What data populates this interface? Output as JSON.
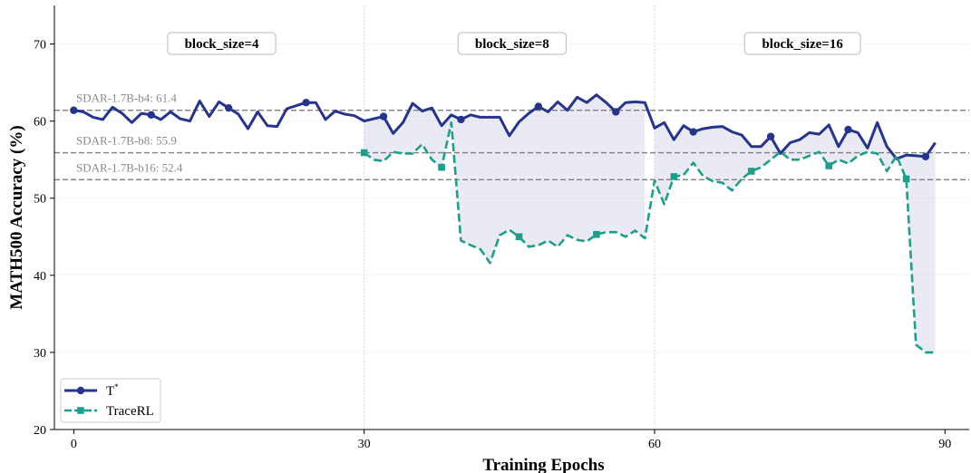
{
  "chart_data": {
    "type": "line",
    "title": "",
    "xlabel": "Training Epochs",
    "ylabel": "MATH500 Accuracy (%)",
    "xlim": [
      -2,
      92.5
    ],
    "ylim": [
      20,
      75
    ],
    "xticks": [
      0,
      30,
      60,
      90
    ],
    "yticks": [
      20,
      30,
      40,
      50,
      60,
      70
    ],
    "grid": "horizontal dotted",
    "legend_position": "bottom-left",
    "phase_boundaries": [
      30,
      60
    ],
    "phase_labels": [
      {
        "text": "block_size=4",
        "x": 15
      },
      {
        "text": "block_size=8",
        "x": 45
      },
      {
        "text": "block_size=16",
        "x": 75
      }
    ],
    "reference_lines": [
      {
        "label": "SDAR-1.7B-b4: 61.4",
        "value": 61.4
      },
      {
        "label": "SDAR-1.7B-b8: 55.9",
        "value": 55.9
      },
      {
        "label": "SDAR-1.7B-b16: 52.4",
        "value": 52.4
      }
    ],
    "series": [
      {
        "name": "T*",
        "color": "#27348b",
        "style": "solid",
        "marker": "circle",
        "marker_every": 8,
        "x": [
          0,
          1,
          2,
          3,
          4,
          5,
          6,
          7,
          8,
          9,
          10,
          11,
          12,
          13,
          14,
          15,
          16,
          17,
          18,
          19,
          20,
          21,
          22,
          23,
          24,
          25,
          26,
          27,
          28,
          29,
          30,
          31,
          32,
          33,
          34,
          35,
          36,
          37,
          38,
          39,
          40,
          41,
          42,
          43,
          44,
          45,
          46,
          47,
          48,
          49,
          50,
          51,
          52,
          53,
          54,
          55,
          56,
          57,
          58,
          59,
          60,
          61,
          62,
          63,
          64,
          65,
          66,
          67,
          68,
          69,
          70,
          71,
          72,
          73,
          74,
          75,
          76,
          77,
          78,
          79,
          80,
          81,
          82,
          83,
          84,
          85,
          86,
          87,
          88,
          89
        ],
        "values": [
          61.4,
          61.2,
          60.5,
          60.2,
          61.8,
          61.0,
          59.8,
          61.0,
          60.8,
          60.2,
          61.2,
          60.3,
          60.0,
          62.6,
          60.6,
          62.5,
          61.7,
          60.9,
          59.0,
          61.2,
          59.4,
          59.3,
          61.6,
          62.0,
          62.4,
          62.4,
          60.2,
          61.3,
          60.9,
          60.7,
          60.0,
          60.3,
          60.6,
          58.4,
          59.8,
          62.3,
          61.3,
          61.7,
          59.4,
          60.8,
          60.2,
          60.8,
          60.5,
          60.5,
          60.5,
          58.1,
          59.9,
          61.0,
          61.9,
          61.2,
          62.5,
          61.4,
          63.1,
          62.4,
          63.4,
          62.4,
          61.2,
          62.4,
          62.5,
          62.4,
          59.1,
          59.8,
          57.6,
          59.4,
          58.6,
          59.0,
          59.2,
          59.3,
          58.6,
          58.2,
          56.7,
          56.7,
          58.0,
          55.8,
          57.2,
          57.6,
          58.5,
          58.3,
          59.5,
          56.7,
          58.9,
          58.5,
          56.5,
          59.8,
          56.7,
          55.1,
          55.6,
          55.5,
          55.4,
          57.2
        ]
      },
      {
        "name": "TraceRL",
        "color": "#1f9e8c",
        "style": "dashed",
        "marker": "square",
        "marker_every": 8,
        "x": [
          30,
          31,
          32,
          33,
          34,
          35,
          36,
          37,
          38,
          39,
          40,
          41,
          42,
          43,
          44,
          45,
          46,
          47,
          48,
          49,
          50,
          51,
          52,
          53,
          54,
          55,
          56,
          57,
          58,
          59,
          60,
          61,
          62,
          63,
          64,
          65,
          66,
          67,
          68,
          69,
          70,
          71,
          72,
          73,
          74,
          75,
          76,
          77,
          78,
          79,
          80,
          81,
          82,
          83,
          84,
          85,
          86,
          87,
          88,
          89
        ],
        "values": [
          55.9,
          55.0,
          54.8,
          56.0,
          55.8,
          55.8,
          57.0,
          55.0,
          54.0,
          59.8,
          44.5,
          43.9,
          43.4,
          41.6,
          45.2,
          45.9,
          45.0,
          43.7,
          43.9,
          44.5,
          43.7,
          45.2,
          44.6,
          44.4,
          45.3,
          45.6,
          45.6,
          45.0,
          45.8,
          44.8,
          52.3,
          49.2,
          52.8,
          53.0,
          54.6,
          52.9,
          52.2,
          52.0,
          51.0,
          52.5,
          53.5,
          54.0,
          55.0,
          56.0,
          55.0,
          55.0,
          55.5,
          56.0,
          54.2,
          55.0,
          54.5,
          55.5,
          56.0,
          55.8,
          53.5,
          55.5,
          52.5,
          31.0,
          30.0,
          30.0
        ]
      }
    ]
  }
}
